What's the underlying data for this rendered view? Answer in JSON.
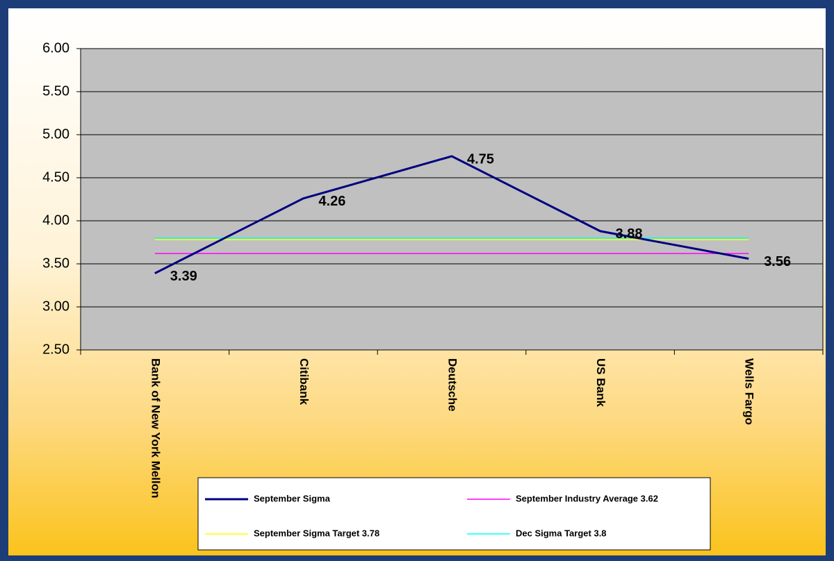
{
  "chart_data": {
    "type": "line",
    "categories": [
      "Bank of New York Mellon",
      "Citibank",
      "Deutsche",
      "US Bank",
      "Wells Fargo"
    ],
    "series": [
      {
        "name": "September Sigma",
        "color": "#000080",
        "values": [
          3.39,
          4.26,
          4.75,
          3.88,
          3.56
        ]
      },
      {
        "name": "September Industry Average 3.62",
        "color": "#ff00ff",
        "values": [
          3.62,
          3.62,
          3.62,
          3.62,
          3.62
        ]
      },
      {
        "name": "September Sigma Target 3.78",
        "color": "#ffff00",
        "values": [
          3.78,
          3.78,
          3.78,
          3.78,
          3.78
        ]
      },
      {
        "name": "Dec Sigma Target 3.8",
        "color": "#00ffff",
        "values": [
          3.8,
          3.8,
          3.8,
          3.8,
          3.8
        ]
      }
    ],
    "ylim": [
      2.5,
      6
    ],
    "yticks": [
      {
        "value": 2.5,
        "label": "2.50"
      },
      {
        "value": 3,
        "label": "3.00"
      },
      {
        "value": 3.5,
        "label": "3.50"
      },
      {
        "value": 4,
        "label": "4.00"
      },
      {
        "value": 4.5,
        "label": "4.50"
      },
      {
        "value": 5,
        "label": "5.00"
      },
      {
        "value": 5.5,
        "label": "5.50"
      },
      {
        "value": 6,
        "label": "6.00"
      }
    ],
    "grid": true,
    "legend": "bottom"
  }
}
